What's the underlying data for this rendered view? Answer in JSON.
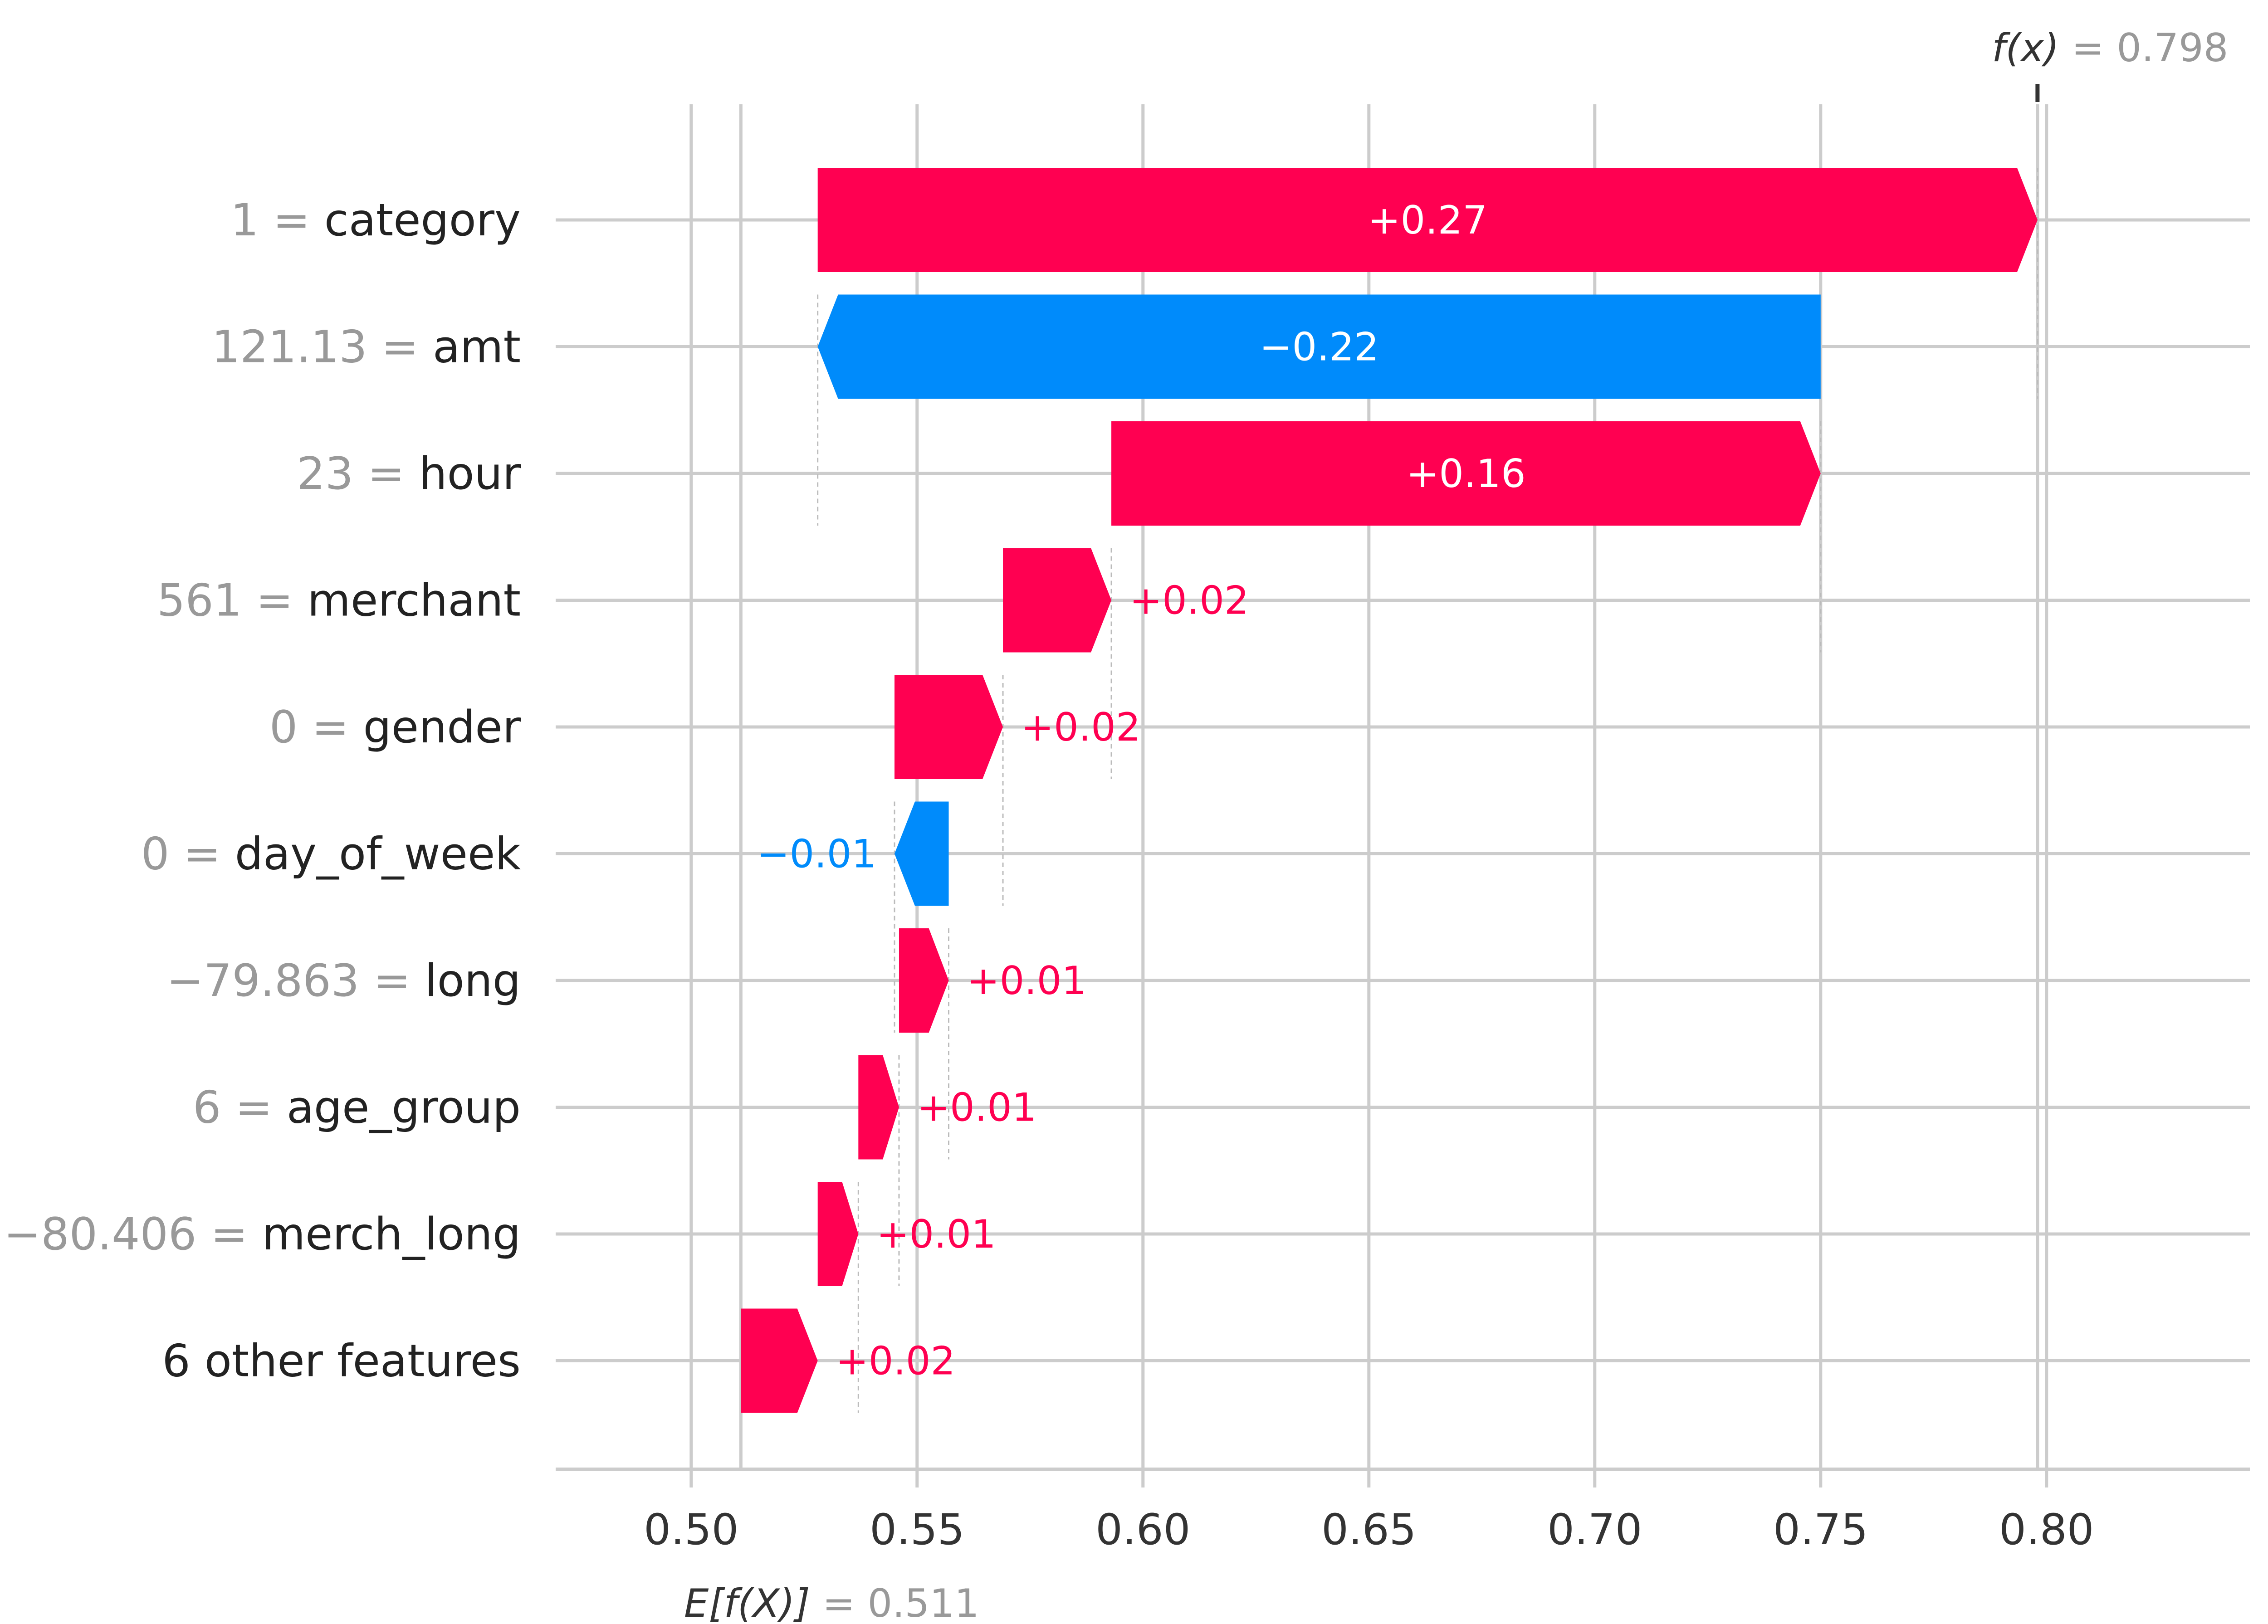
{
  "chart_data": {
    "type": "waterfall",
    "base_value": 0.511,
    "base_label_expr": "E[f(X)]",
    "base_label_value": "0.511",
    "final_value": 0.798,
    "final_label_expr": "f(x)",
    "final_label_value": "0.798",
    "xlim": [
      0.47,
      0.845
    ],
    "xticks": [
      0.5,
      0.55,
      0.6,
      0.65,
      0.7,
      0.75,
      0.8
    ],
    "xtick_labels": [
      "0.50",
      "0.55",
      "0.60",
      "0.65",
      "0.70",
      "0.75",
      "0.80"
    ],
    "features": [
      {
        "value": "1",
        "name": "category",
        "start": 0.528,
        "end": 0.798,
        "label": "+0.27"
      },
      {
        "value": "121.13",
        "name": "amt",
        "start": 0.75,
        "end": 0.528,
        "label": "−0.22"
      },
      {
        "value": "23",
        "name": "hour",
        "start": 0.593,
        "end": 0.75,
        "label": "+0.16"
      },
      {
        "value": "561",
        "name": "merchant",
        "start": 0.569,
        "end": 0.593,
        "label": "+0.02"
      },
      {
        "value": "0",
        "name": "gender",
        "start": 0.545,
        "end": 0.569,
        "label": "+0.02"
      },
      {
        "value": "0",
        "name": "day_of_week",
        "start": 0.557,
        "end": 0.545,
        "label": "−0.01"
      },
      {
        "value": "−79.863",
        "name": "long",
        "start": 0.546,
        "end": 0.557,
        "label": "+0.01"
      },
      {
        "value": "6",
        "name": "age_group",
        "start": 0.537,
        "end": 0.546,
        "label": "+0.01"
      },
      {
        "value": "−80.406",
        "name": "merch_long",
        "start": 0.528,
        "end": 0.537,
        "label": "+0.01"
      },
      {
        "value": "",
        "name": "6 other features",
        "start": 0.511,
        "end": 0.528,
        "label": "+0.02"
      }
    ],
    "colors": {
      "positive": "#ff0051",
      "negative": "#008bfb",
      "grid": "#cccccc",
      "value_text": "#999999",
      "name_text": "#222222"
    }
  }
}
